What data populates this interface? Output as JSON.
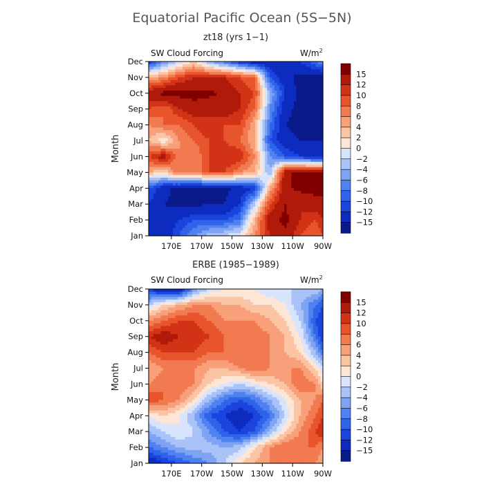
{
  "figure": {
    "title": "Equatorial Pacific Ocean (5S−5N)"
  },
  "chart_data": [
    {
      "type": "heatmap",
      "panel_title": "zt18 (yrs 1−1)",
      "left_label": "SW Cloud Forcing",
      "units_label": "W/m",
      "units_exp": "2",
      "ylabel": "Month",
      "xlabel": "",
      "x_tick_labels": [
        "170E",
        "170W",
        "150W",
        "130W",
        "110W",
        "90W"
      ],
      "x_tick_lon": [
        170,
        190,
        210,
        230,
        250,
        270
      ],
      "xlim": [
        155,
        270
      ],
      "y_tick_labels": [
        "Jan",
        "Feb",
        "Mar",
        "Apr",
        "May",
        "Jun",
        "Jul",
        "Aug",
        "Sep",
        "Oct",
        "Nov",
        "Dec"
      ],
      "ylim": [
        1,
        12
      ],
      "colorbar_levels": [
        -15,
        -12,
        -10,
        -8,
        -6,
        -4,
        -2,
        0,
        2,
        4,
        6,
        8,
        10,
        12,
        15
      ],
      "colorbar_labels": [
        "15",
        "12",
        "10",
        "8",
        "6",
        "4",
        "2",
        "0",
        "−2",
        "−4",
        "−6",
        "−8",
        "−10",
        "−12",
        "−15"
      ],
      "lon": [
        155,
        165,
        175,
        185,
        195,
        205,
        215,
        225,
        235,
        245,
        255,
        265,
        270
      ],
      "month": [
        1,
        2,
        3,
        4,
        5,
        6,
        7,
        8,
        9,
        10,
        11,
        12
      ],
      "z": [
        [
          -15,
          -14,
          -10,
          -6,
          -3,
          -2,
          0,
          6,
          12,
          14,
          10,
          8,
          10
        ],
        [
          -15,
          -14,
          -12,
          -10,
          -10,
          -10,
          -8,
          4,
          14,
          16,
          12,
          10,
          12
        ],
        [
          -12,
          -15,
          -16,
          -16,
          -15,
          -15,
          -12,
          -2,
          10,
          15,
          12,
          14,
          14
        ],
        [
          -10,
          -14,
          -16,
          -16,
          -16,
          -16,
          -14,
          -12,
          4,
          14,
          16,
          16,
          16
        ],
        [
          4,
          2,
          8,
          6,
          10,
          10,
          6,
          4,
          -4,
          14,
          16,
          16,
          16
        ],
        [
          10,
          14,
          6,
          6,
          10,
          12,
          12,
          6,
          -6,
          -10,
          -12,
          -14,
          -14
        ],
        [
          4,
          0,
          6,
          8,
          10,
          10,
          8,
          4,
          -10,
          -14,
          -15,
          -15,
          -15
        ],
        [
          6,
          8,
          8,
          10,
          12,
          10,
          10,
          4,
          -8,
          -15,
          -16,
          -16,
          -16
        ],
        [
          10,
          8,
          12,
          14,
          12,
          14,
          12,
          8,
          -6,
          -14,
          -16,
          -16,
          -16
        ],
        [
          14,
          16,
          16,
          16,
          16,
          14,
          12,
          10,
          -4,
          -12,
          -16,
          -16,
          -16
        ],
        [
          4,
          6,
          10,
          12,
          12,
          12,
          10,
          8,
          -10,
          -14,
          -16,
          -16,
          -16
        ],
        [
          -12,
          -6,
          -2,
          2,
          -4,
          -8,
          -12,
          -15,
          -14,
          -14,
          -12,
          -8,
          -6
        ]
      ]
    },
    {
      "type": "heatmap",
      "panel_title": "ERBE (1985−1989)",
      "left_label": "SW Cloud Forcing",
      "units_label": "W/m",
      "units_exp": "2",
      "ylabel": "Month",
      "xlabel": "",
      "x_tick_labels": [
        "170E",
        "170W",
        "150W",
        "130W",
        "110W",
        "90W"
      ],
      "x_tick_lon": [
        170,
        190,
        210,
        230,
        250,
        270
      ],
      "xlim": [
        155,
        270
      ],
      "y_tick_labels": [
        "Jan",
        "Feb",
        "Mar",
        "Apr",
        "May",
        "Jun",
        "Jul",
        "Aug",
        "Sep",
        "Oct",
        "Nov",
        "Dec"
      ],
      "ylim": [
        1,
        12
      ],
      "colorbar_levels": [
        -15,
        -12,
        -10,
        -8,
        -6,
        -4,
        -2,
        0,
        2,
        4,
        6,
        8,
        10,
        12,
        15
      ],
      "colorbar_labels": [
        "15",
        "12",
        "10",
        "8",
        "6",
        "4",
        "2",
        "0",
        "−2",
        "−4",
        "−6",
        "−8",
        "−10",
        "−12",
        "−15"
      ],
      "lon": [
        155,
        165,
        175,
        185,
        195,
        205,
        215,
        225,
        235,
        245,
        255,
        265,
        270
      ],
      "month": [
        1,
        2,
        3,
        4,
        5,
        6,
        7,
        8,
        9,
        10,
        11,
        12
      ],
      "z": [
        [
          -15,
          -12,
          -10,
          -8,
          -6,
          -2,
          2,
          4,
          6,
          8,
          8,
          6,
          4
        ],
        [
          -8,
          -6,
          -4,
          -3,
          -3,
          -4,
          -3,
          2,
          6,
          8,
          8,
          8,
          6
        ],
        [
          -4,
          -2,
          0,
          -2,
          -6,
          -10,
          -12,
          -10,
          -4,
          2,
          6,
          10,
          12
        ],
        [
          0,
          2,
          0,
          -4,
          -10,
          -12,
          -14,
          -12,
          -8,
          -2,
          4,
          8,
          10
        ],
        [
          10,
          8,
          6,
          2,
          -4,
          -8,
          -10,
          -8,
          -4,
          0,
          4,
          6,
          8
        ],
        [
          6,
          8,
          8,
          6,
          2,
          0,
          -2,
          0,
          2,
          4,
          8,
          6,
          2
        ],
        [
          4,
          6,
          6,
          6,
          4,
          4,
          6,
          8,
          6,
          6,
          6,
          2,
          -2
        ],
        [
          8,
          10,
          10,
          10,
          8,
          8,
          8,
          8,
          6,
          4,
          2,
          -4,
          -8
        ],
        [
          12,
          14,
          12,
          12,
          10,
          8,
          8,
          8,
          6,
          4,
          0,
          -8,
          -12
        ],
        [
          6,
          8,
          10,
          10,
          8,
          6,
          6,
          6,
          4,
          2,
          -2,
          -10,
          -12
        ],
        [
          -2,
          2,
          4,
          6,
          6,
          4,
          4,
          2,
          2,
          0,
          -4,
          -8,
          -10
        ],
        [
          -12,
          -15,
          -15,
          -6,
          -2,
          0,
          0,
          0,
          -2,
          -2,
          -2,
          -2,
          -4
        ]
      ]
    }
  ]
}
